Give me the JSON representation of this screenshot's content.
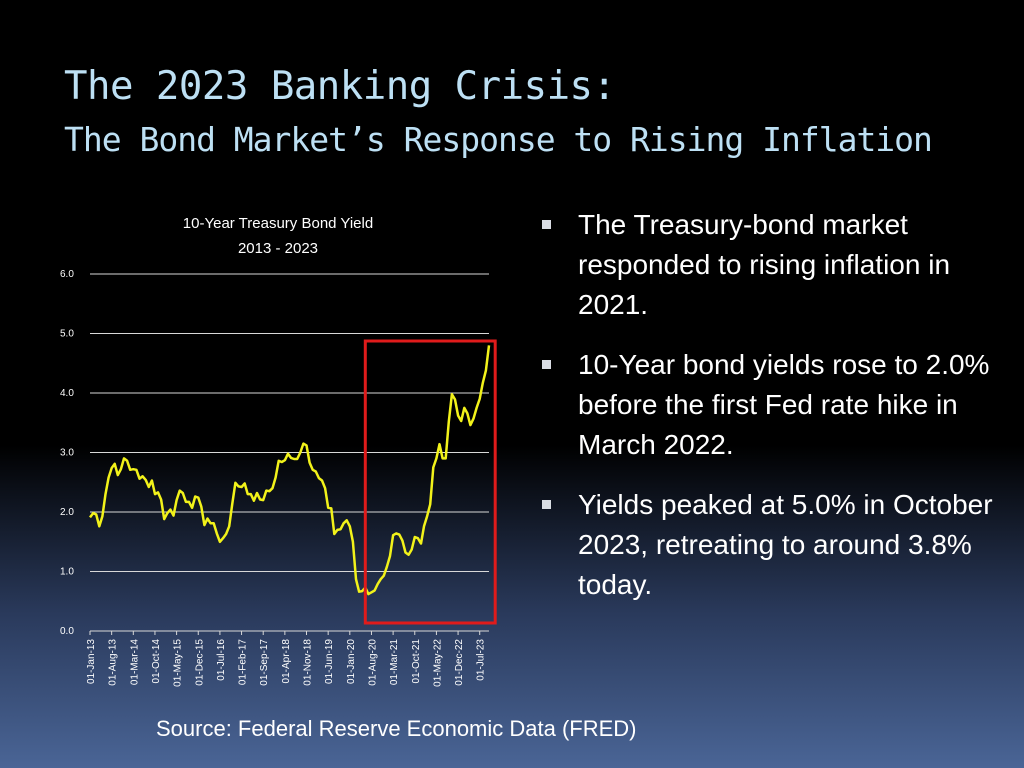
{
  "slide": {
    "title": "The 2023 Banking Crisis:",
    "subtitle": "The Bond Market’s Response to Rising Inflation",
    "source": "Source: Federal Reserve Economic Data (FRED)",
    "bullets": [
      "The Treasury-bond market responded to rising inflation in 2021.",
      "10-Year bond yields rose to 2.0% before the first Fed rate hike in March 2022.",
      "Yields peaked at 5.0% in October 2023, retreating to around 3.8% today."
    ]
  },
  "colors": {
    "title": "#bde0f4",
    "line": "#f2f21a",
    "highlight_box": "#e01b1b",
    "gridline": "#d8d8d8"
  },
  "chart_data": {
    "type": "line",
    "title": "10-Year Treasury Bond Yield",
    "subtitle": "2013 - 2023",
    "xlabel": "",
    "ylabel": "",
    "ylim": [
      0,
      6
    ],
    "yticks": [
      "0.0",
      "1.0",
      "2.0",
      "3.0",
      "4.0",
      "5.0",
      "6.0"
    ],
    "grid": true,
    "xtick_labels": [
      "01-Jan-13",
      "01-Aug-13",
      "01-Mar-14",
      "01-Oct-14",
      "01-May-15",
      "01-Dec-15",
      "01-Jul-16",
      "01-Feb-17",
      "01-Sep-17",
      "01-Apr-18",
      "01-Nov-18",
      "01-Jun-19",
      "01-Jan-20",
      "01-Aug-20",
      "01-Mar-21",
      "01-Oct-21",
      "01-May-22",
      "01-Dec-22",
      "01-Jul-23"
    ],
    "highlight_range": [
      "2020-06",
      "2023-12"
    ],
    "series": [
      {
        "x": [
          "2013-01",
          "2013-02",
          "2013-03",
          "2013-04",
          "2013-05",
          "2013-06",
          "2013-07",
          "2013-08",
          "2013-09",
          "2013-10",
          "2013-11",
          "2013-12",
          "2014-01",
          "2014-02",
          "2014-03",
          "2014-04",
          "2014-05",
          "2014-06",
          "2014-07",
          "2014-08",
          "2014-09",
          "2014-10",
          "2014-11",
          "2014-12",
          "2015-01",
          "2015-02",
          "2015-03",
          "2015-04",
          "2015-05",
          "2015-06",
          "2015-07",
          "2015-08",
          "2015-09",
          "2015-10",
          "2015-11",
          "2015-12",
          "2016-01",
          "2016-02",
          "2016-03",
          "2016-04",
          "2016-05",
          "2016-06",
          "2016-07",
          "2016-08",
          "2016-09",
          "2016-10",
          "2016-11",
          "2016-12",
          "2017-01",
          "2017-02",
          "2017-03",
          "2017-04",
          "2017-05",
          "2017-06",
          "2017-07",
          "2017-08",
          "2017-09",
          "2017-10",
          "2017-11",
          "2017-12",
          "2018-01",
          "2018-02",
          "2018-03",
          "2018-04",
          "2018-05",
          "2018-06",
          "2018-07",
          "2018-08",
          "2018-09",
          "2018-10",
          "2018-11",
          "2018-12",
          "2019-01",
          "2019-02",
          "2019-03",
          "2019-04",
          "2019-05",
          "2019-06",
          "2019-07",
          "2019-08",
          "2019-09",
          "2019-10",
          "2019-11",
          "2019-12",
          "2020-01",
          "2020-02",
          "2020-03",
          "2020-04",
          "2020-05",
          "2020-06",
          "2020-07",
          "2020-08",
          "2020-09",
          "2020-10",
          "2020-11",
          "2020-12",
          "2021-01",
          "2021-02",
          "2021-03",
          "2021-04",
          "2021-05",
          "2021-06",
          "2021-07",
          "2021-08",
          "2021-09",
          "2021-10",
          "2021-11",
          "2021-12",
          "2022-01",
          "2022-02",
          "2022-03",
          "2022-04",
          "2022-05",
          "2022-06",
          "2022-07",
          "2022-08",
          "2022-09",
          "2022-10",
          "2022-11",
          "2022-12",
          "2023-01",
          "2023-02",
          "2023-03",
          "2023-04",
          "2023-05",
          "2023-06",
          "2023-07",
          "2023-08",
          "2023-09",
          "2023-10"
        ],
        "y": [
          1.91,
          1.98,
          1.96,
          1.76,
          1.93,
          2.3,
          2.58,
          2.74,
          2.81,
          2.62,
          2.72,
          2.9,
          2.86,
          2.71,
          2.72,
          2.71,
          2.56,
          2.6,
          2.54,
          2.42,
          2.53,
          2.3,
          2.33,
          2.21,
          1.88,
          1.98,
          2.04,
          1.94,
          2.2,
          2.36,
          2.32,
          2.17,
          2.17,
          2.07,
          2.26,
          2.24,
          2.09,
          1.78,
          1.89,
          1.81,
          1.81,
          1.64,
          1.5,
          1.56,
          1.63,
          1.76,
          2.14,
          2.49,
          2.43,
          2.42,
          2.48,
          2.3,
          2.3,
          2.19,
          2.32,
          2.21,
          2.2,
          2.36,
          2.35,
          2.4,
          2.58,
          2.86,
          2.84,
          2.87,
          2.98,
          2.91,
          2.89,
          2.89,
          3.0,
          3.15,
          3.12,
          2.83,
          2.71,
          2.68,
          2.57,
          2.53,
          2.4,
          2.07,
          2.06,
          1.63,
          1.7,
          1.71,
          1.81,
          1.86,
          1.76,
          1.5,
          0.87,
          0.66,
          0.67,
          0.73,
          0.62,
          0.65,
          0.68,
          0.79,
          0.87,
          0.93,
          1.08,
          1.26,
          1.61,
          1.64,
          1.62,
          1.52,
          1.32,
          1.28,
          1.37,
          1.58,
          1.56,
          1.47,
          1.76,
          1.93,
          2.13,
          2.75,
          2.9,
          3.14,
          2.9,
          2.9,
          3.52,
          3.98,
          3.89,
          3.62,
          3.53,
          3.75,
          3.66,
          3.46,
          3.57,
          3.75,
          3.9,
          4.17,
          4.38,
          4.8
        ]
      }
    ]
  }
}
